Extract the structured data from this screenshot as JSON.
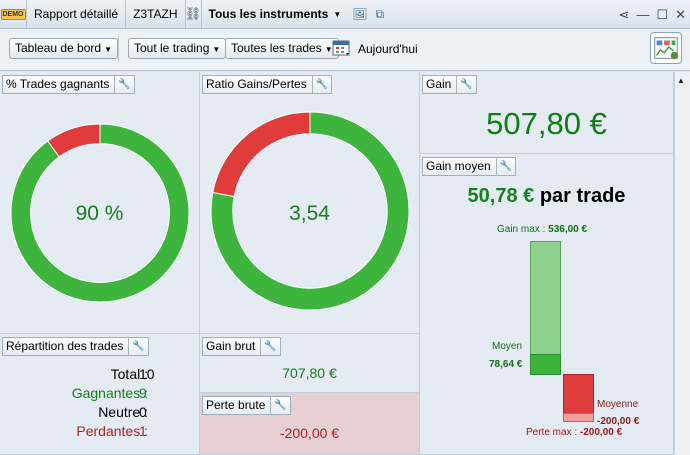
{
  "window": {
    "demo_badge": "DEMO",
    "title": "Rapport détaillé",
    "account": "Z3TAZH",
    "instruments": "Tous les instruments"
  },
  "toolbar": {
    "dashboard": "Tableau de bord",
    "trading": "Tout le trading",
    "trades": "Toutes les trades",
    "period": "Aujourd'hui"
  },
  "panels": {
    "win_rate": {
      "title": "% Trades gagnants",
      "value": "90 %",
      "percent": 90
    },
    "ratio": {
      "title": "Ratio Gains/Pertes",
      "value": "3,54",
      "gain_share": 78
    },
    "gain": {
      "title": "Gain",
      "value": "507,80 €"
    },
    "avg_gain": {
      "title": "Gain moyen",
      "value": "50,78 €",
      "suffix": " par trade",
      "max_label": "Gain max : ",
      "max_value": "536,00 €",
      "avg_label": "Moyen",
      "avg_value": "78,64 €",
      "avg_loss_label": "Moyenne",
      "avg_loss_value": "-200,00 €",
      "min_label": "Perte max : ",
      "min_value": "-200,00 €"
    },
    "distribution": {
      "title": "Répartition des trades",
      "rows": [
        {
          "label": "Total :",
          "value": "10"
        },
        {
          "label": "Gagnantes :",
          "value": "9"
        },
        {
          "label": "Neutre :",
          "value": "0"
        },
        {
          "label": "Perdantes :",
          "value": "1"
        }
      ]
    },
    "gross_gain": {
      "title": "Gain brut",
      "value": "707,80 €"
    },
    "gross_loss": {
      "title": "Perte brute",
      "value": "-200,00 €"
    }
  },
  "colors": {
    "green": "#3db53d",
    "red": "#e03c3c",
    "loss_bg": "#e8d0d2"
  }
}
